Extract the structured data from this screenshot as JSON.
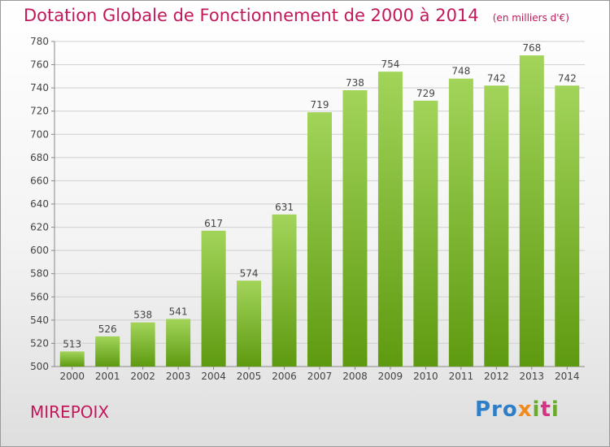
{
  "title": "Dotation Globale de Fonctionnement de 2000 à 2014",
  "subtitle": "(en milliers d'€)",
  "commune": "MIREPOIX",
  "logo": "Proxiti",
  "colors": {
    "bar_top": "#a2d45a",
    "bar_bottom": "#5e9a10",
    "title": "#c2185b",
    "grid": "#cfcfcf"
  },
  "chart_data": {
    "type": "bar",
    "categories": [
      "2000",
      "2001",
      "2002",
      "2003",
      "2004",
      "2005",
      "2006",
      "2007",
      "2008",
      "2009",
      "2010",
      "2011",
      "2012",
      "2013",
      "2014"
    ],
    "values": [
      513,
      526,
      538,
      541,
      617,
      574,
      631,
      719,
      738,
      754,
      729,
      748,
      742,
      768,
      742
    ],
    "title": "Dotation Globale de Fonctionnement de 2000 à 2014",
    "subtitle": "(en milliers d'€)",
    "xlabel": "",
    "ylabel": "",
    "ylim": [
      500,
      780
    ],
    "yticks": [
      500,
      520,
      540,
      560,
      580,
      600,
      620,
      640,
      660,
      680,
      700,
      720,
      740,
      760,
      780
    ],
    "grid": true,
    "data_labels": true
  }
}
